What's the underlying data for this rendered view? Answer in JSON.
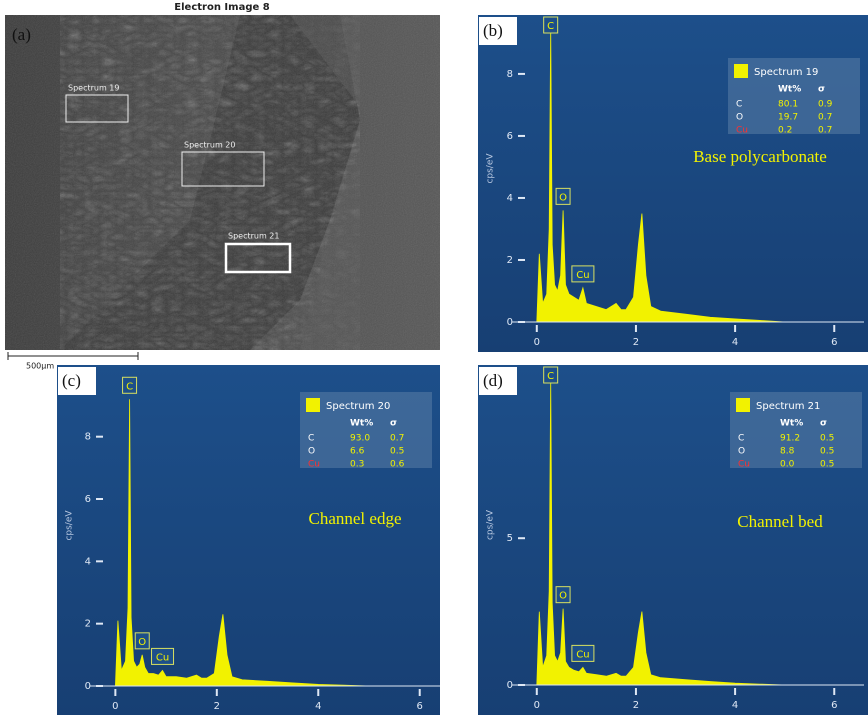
{
  "image_panel": {
    "panel_label": "(a)",
    "title": "Electron Image 8",
    "regions": [
      "Spectrum 19",
      "Spectrum 20",
      "Spectrum 21"
    ],
    "scale_bar": "500µm"
  },
  "chart_data": [
    {
      "type": "area",
      "panel_label": "(b)",
      "ylabel": "cps/eV",
      "note": "Base polycarbonate",
      "xlim": [
        -0.5,
        6.6
      ],
      "ylim": [
        0,
        9.9
      ],
      "xticks": [
        0,
        2,
        4,
        6
      ],
      "yticks": [
        0,
        2,
        4,
        6,
        8
      ],
      "x": [
        0,
        0.05,
        0.12,
        0.2,
        0.25,
        0.28,
        0.31,
        0.36,
        0.42,
        0.48,
        0.53,
        0.58,
        0.65,
        0.75,
        0.85,
        0.93,
        1.0,
        1.2,
        1.4,
        1.6,
        1.7,
        1.8,
        1.95,
        2.05,
        2.12,
        2.2,
        2.3,
        2.5,
        3,
        3.5,
        4,
        4.5,
        5
      ],
      "series": [
        {
          "name": "Spectrum 19",
          "color": "#f2f200",
          "values": [
            0,
            2.2,
            0.6,
            0.9,
            3,
            9.5,
            2.5,
            1.2,
            1.0,
            1.5,
            3.6,
            1.2,
            0.9,
            0.8,
            0.7,
            1.1,
            0.6,
            0.5,
            0.4,
            0.6,
            0.4,
            0.4,
            0.8,
            2.5,
            3.5,
            1.5,
            0.5,
            0.35,
            0.25,
            0.15,
            0.1,
            0.05,
            0
          ]
        }
      ],
      "peak_labels": [
        {
          "label": "C",
          "x": 0.28
        },
        {
          "label": "O",
          "x": 0.53
        },
        {
          "label": "Cu",
          "x": 0.93
        }
      ],
      "table": {
        "header": [
          "Wt%",
          "σ"
        ],
        "rows": [
          [
            "C",
            "80.1",
            "0.9"
          ],
          [
            "O",
            "19.7",
            "0.7"
          ],
          [
            "Cu",
            "0.2",
            "0.7"
          ]
        ]
      }
    },
    {
      "type": "area",
      "panel_label": "(c)",
      "ylabel": "cps/eV",
      "note": "Channel edge",
      "xlim": [
        -0.5,
        6.4
      ],
      "ylim": [
        0,
        10.3
      ],
      "xticks": [
        0,
        2,
        4,
        6
      ],
      "yticks": [
        0,
        2,
        4,
        6,
        8
      ],
      "x": [
        0,
        0.05,
        0.12,
        0.2,
        0.25,
        0.28,
        0.31,
        0.36,
        0.42,
        0.48,
        0.53,
        0.58,
        0.65,
        0.75,
        0.85,
        0.93,
        1.0,
        1.2,
        1.4,
        1.6,
        1.7,
        1.8,
        1.95,
        2.05,
        2.12,
        2.2,
        2.3,
        2.5,
        3,
        3.5,
        4,
        4.5,
        5
      ],
      "series": [
        {
          "name": "Spectrum 20",
          "color": "#f2f200",
          "values": [
            0,
            2.1,
            0.5,
            0.8,
            2.5,
            9.2,
            2.2,
            0.8,
            0.6,
            0.7,
            1.0,
            0.6,
            0.4,
            0.4,
            0.35,
            0.5,
            0.3,
            0.3,
            0.25,
            0.35,
            0.25,
            0.25,
            0.4,
            1.6,
            2.3,
            1.0,
            0.3,
            0.2,
            0.15,
            0.1,
            0.05,
            0.03,
            0
          ]
        }
      ],
      "peak_labels": [
        {
          "label": "C",
          "x": 0.28
        },
        {
          "label": "O",
          "x": 0.53
        },
        {
          "label": "Cu",
          "x": 0.93
        }
      ],
      "table": {
        "header": [
          "Wt%",
          "σ"
        ],
        "rows": [
          [
            "C",
            "93.0",
            "0.7"
          ],
          [
            "O",
            "6.6",
            "0.5"
          ],
          [
            "Cu",
            "0.3",
            "0.6"
          ]
        ]
      }
    },
    {
      "type": "area",
      "panel_label": "(d)",
      "ylabel": "cps/eV",
      "note": "Channel bed",
      "xlim": [
        -0.5,
        6.6
      ],
      "ylim": [
        0,
        10.9
      ],
      "xticks": [
        0,
        2,
        4,
        6
      ],
      "yticks": [
        0,
        5
      ],
      "x": [
        0,
        0.05,
        0.12,
        0.2,
        0.25,
        0.28,
        0.31,
        0.36,
        0.42,
        0.48,
        0.53,
        0.58,
        0.65,
        0.75,
        0.85,
        0.93,
        1.0,
        1.2,
        1.4,
        1.6,
        1.7,
        1.8,
        1.95,
        2.05,
        2.12,
        2.2,
        2.3,
        2.5,
        3,
        3.5,
        4,
        4.5,
        5
      ],
      "series": [
        {
          "name": "Spectrum 21",
          "color": "#f2f200",
          "values": [
            0,
            2.5,
            0.6,
            1,
            3.2,
            10.4,
            2.8,
            1.0,
            0.8,
            1.1,
            2.6,
            0.8,
            0.6,
            0.5,
            0.45,
            0.6,
            0.4,
            0.35,
            0.3,
            0.4,
            0.3,
            0.3,
            0.6,
            1.8,
            2.5,
            1.1,
            0.35,
            0.25,
            0.18,
            0.12,
            0.06,
            0.03,
            0
          ]
        }
      ],
      "peak_labels": [
        {
          "label": "C",
          "x": 0.28
        },
        {
          "label": "O",
          "x": 0.53
        },
        {
          "label": "Cu",
          "x": 0.93
        }
      ],
      "table": {
        "header": [
          "Wt%",
          "σ"
        ],
        "rows": [
          [
            "C",
            "91.2",
            "0.5"
          ],
          [
            "O",
            "8.8",
            "0.5"
          ],
          [
            "Cu",
            "0.0",
            "0.5"
          ]
        ]
      }
    }
  ]
}
